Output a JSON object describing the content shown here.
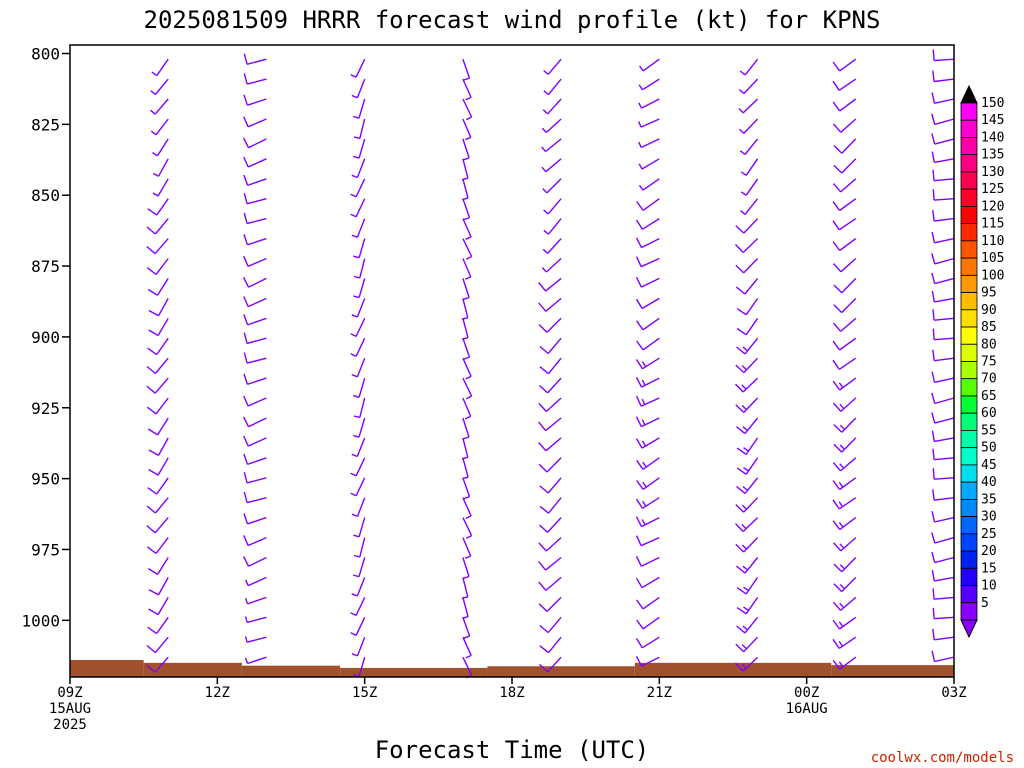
{
  "chart_data": {
    "type": "wind-barb-profile",
    "title": "2025081509 HRRR forecast wind profile (kt) for KPNS",
    "xlabel": "Forecast Time (UTC)",
    "credit": "coolwx.com/models",
    "y_levels": [
      800,
      825,
      850,
      875,
      900,
      925,
      950,
      975,
      1000
    ],
    "ylim": [
      1020,
      797
    ],
    "x_ticks": [
      {
        "h": 0,
        "lines": [
          "09Z",
          "15AUG",
          "2025"
        ]
      },
      {
        "h": 3,
        "lines": [
          "12Z"
        ]
      },
      {
        "h": 6,
        "lines": [
          "15Z"
        ]
      },
      {
        "h": 9,
        "lines": [
          "18Z"
        ]
      },
      {
        "h": 12,
        "lines": [
          "21Z"
        ]
      },
      {
        "h": 15,
        "lines": [
          "00Z",
          "16AUG"
        ]
      },
      {
        "h": 18,
        "lines": [
          "03Z"
        ]
      }
    ],
    "x_hours_range": [
      0,
      18
    ],
    "surface_pressure": [
      {
        "h0": 0,
        "h1": 1.5,
        "p": 1014
      },
      {
        "h0": 1.5,
        "h1": 3.5,
        "p": 1015
      },
      {
        "h0": 3.5,
        "h1": 5.5,
        "p": 1016
      },
      {
        "h0": 5.5,
        "h1": 8.5,
        "p": 1016.8
      },
      {
        "h0": 8.5,
        "h1": 11.5,
        "p": 1016.2
      },
      {
        "h0": 11.5,
        "h1": 15.5,
        "p": 1015
      },
      {
        "h0": 15.5,
        "h1": 18,
        "p": 1015.8
      }
    ],
    "surface_color": "#a0522d",
    "barb_color": "#8000ff",
    "columns": [
      {
        "h": 2,
        "dir": 215,
        "spd": [
          5,
          5,
          5,
          5,
          5,
          5,
          5,
          10,
          10,
          10,
          10,
          10,
          10,
          10,
          10,
          10,
          10,
          10,
          10,
          10,
          10,
          10,
          10,
          10,
          10,
          10,
          10,
          10,
          10,
          10,
          10
        ]
      },
      {
        "h": 4,
        "dir": 250,
        "spd": [
          10,
          10,
          10,
          10,
          10,
          10,
          10,
          10,
          10,
          10,
          10,
          10,
          10,
          10,
          10,
          10,
          10,
          10,
          10,
          10,
          10,
          10,
          10,
          10,
          10,
          10,
          5,
          5,
          5,
          5,
          5
        ]
      },
      {
        "h": 6,
        "dir": 200,
        "spd": [
          5,
          5,
          5,
          5,
          5,
          5,
          5,
          5,
          5,
          5,
          5,
          5,
          5,
          5,
          5,
          5,
          5,
          5,
          5,
          5,
          5,
          5,
          5,
          5,
          5,
          5,
          5,
          5,
          5,
          5,
          5
        ]
      },
      {
        "h": 8,
        "dir": 160,
        "spd": [
          5,
          5,
          5,
          5,
          5,
          5,
          5,
          5,
          5,
          5,
          5,
          5,
          5,
          5,
          5,
          5,
          5,
          5,
          5,
          5,
          5,
          5,
          5,
          5,
          5,
          5,
          5,
          5,
          5,
          5,
          5
        ]
      },
      {
        "h": 10,
        "dir": 225,
        "spd": [
          5,
          5,
          5,
          5,
          5,
          5,
          5,
          5,
          5,
          5,
          5,
          10,
          10,
          10,
          10,
          10,
          10,
          10,
          10,
          10,
          10,
          10,
          10,
          10,
          10,
          10,
          10,
          10,
          10,
          10,
          10
        ]
      },
      {
        "h": 12,
        "dir": 240,
        "spd": [
          5,
          5,
          5,
          5,
          5,
          5,
          5,
          10,
          10,
          10,
          10,
          10,
          10,
          10,
          10,
          15,
          15,
          15,
          15,
          15,
          15,
          15,
          15,
          15,
          10,
          10,
          10,
          10,
          10,
          10,
          10
        ]
      },
      {
        "h": 14,
        "dir": 220,
        "spd": [
          5,
          5,
          5,
          5,
          5,
          5,
          5,
          5,
          10,
          10,
          10,
          10,
          10,
          10,
          15,
          15,
          15,
          15,
          15,
          15,
          15,
          15,
          15,
          15,
          15,
          15,
          15,
          15,
          15,
          15,
          15
        ]
      },
      {
        "h": 16,
        "dir": 230,
        "spd": [
          10,
          10,
          10,
          10,
          10,
          10,
          10,
          10,
          10,
          10,
          10,
          10,
          10,
          10,
          10,
          10,
          15,
          15,
          15,
          15,
          15,
          15,
          15,
          15,
          15,
          15,
          15,
          15,
          15,
          15,
          15
        ]
      },
      {
        "h": 18,
        "dir": 260,
        "spd": [
          10,
          10,
          10,
          10,
          10,
          10,
          10,
          10,
          10,
          10,
          10,
          10,
          10,
          10,
          10,
          10,
          10,
          10,
          10,
          10,
          10,
          10,
          10,
          10,
          10,
          10,
          10,
          10,
          10,
          10,
          10
        ]
      }
    ],
    "colorbar": {
      "labels": [
        150,
        145,
        140,
        135,
        130,
        125,
        120,
        115,
        110,
        105,
        100,
        95,
        90,
        85,
        80,
        75,
        70,
        65,
        60,
        55,
        50,
        45,
        40,
        35,
        30,
        25,
        20,
        15,
        10,
        5
      ],
      "colors": [
        "#ff00ff",
        "#ff00d0",
        "#ff00a8",
        "#ff0080",
        "#ff0050",
        "#ff0028",
        "#ff0000",
        "#ff2a00",
        "#ff5500",
        "#ff7700",
        "#ff9900",
        "#ffbb00",
        "#ffdd00",
        "#ffff00",
        "#ddff00",
        "#aaff00",
        "#55ff00",
        "#00ff33",
        "#00ff77",
        "#00ffaa",
        "#00ffcc",
        "#00ddee",
        "#00aaff",
        "#0088ff",
        "#0066ff",
        "#0044ff",
        "#0022ee",
        "#2200ff",
        "#5500ff",
        "#8800ff"
      ],
      "top_arrow_color": "#000000",
      "bottom_arrow_color": "#8800ff"
    }
  }
}
